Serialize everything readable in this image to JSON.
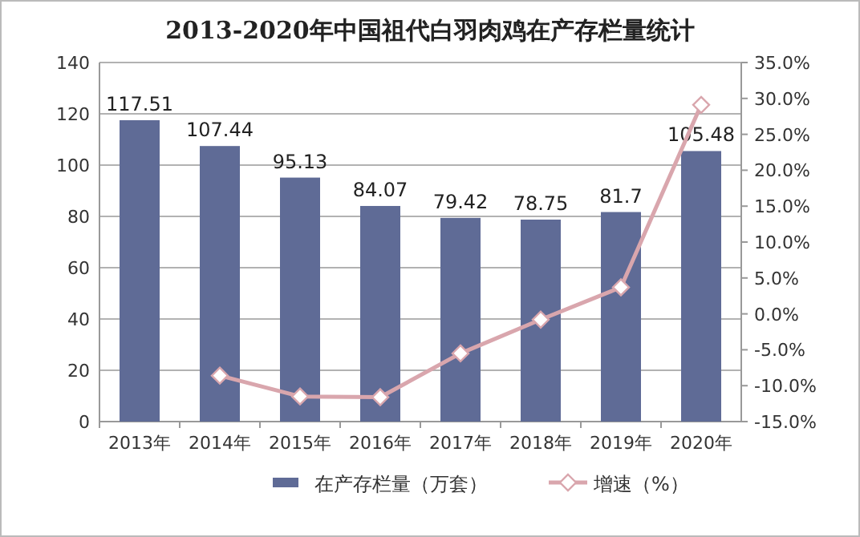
{
  "chart_data": {
    "type": "bar",
    "title": "2013-2020年中国祖代白羽肉鸡在产存栏量统计",
    "categories": [
      "2013年",
      "2014年",
      "2015年",
      "2016年",
      "2017年",
      "2018年",
      "2019年",
      "2020年"
    ],
    "series": [
      {
        "name": "在产存栏量（万套）",
        "color": "#5f6b96",
        "values": [
          117.51,
          107.44,
          95.13,
          84.07,
          79.42,
          78.75,
          81.7,
          105.48
        ],
        "value_labels": [
          "117.51",
          "107.44",
          "95.13",
          "84.07",
          "79.42",
          "78.75",
          "81.7",
          "105.48"
        ]
      },
      {
        "name": "增速（%）",
        "type": "line",
        "axis": "y2",
        "color": "#d9a6ad",
        "marker": "diamond",
        "values": [
          null,
          -8.6,
          -11.5,
          -11.6,
          -5.5,
          -0.8,
          3.7,
          29.1
        ]
      }
    ],
    "ylim": [
      0,
      140
    ],
    "yticks": [
      0,
      20,
      40,
      60,
      80,
      100,
      120,
      140
    ],
    "y2lim": [
      -15,
      35
    ],
    "y2ticks": [
      {
        "value": -15,
        "label": "-15.0%"
      },
      {
        "value": -10,
        "label": "-10.0%"
      },
      {
        "value": -5,
        "label": "-5.0%"
      },
      {
        "value": 0,
        "label": "0.0%"
      },
      {
        "value": 5,
        "label": "5.0%"
      },
      {
        "value": 10,
        "label": "10.0%"
      },
      {
        "value": 15,
        "label": "15.0%"
      },
      {
        "value": 20,
        "label": "20.0%"
      },
      {
        "value": 25,
        "label": "25.0%"
      },
      {
        "value": 30,
        "label": "30.0%"
      },
      {
        "value": 35,
        "label": "35.0%"
      }
    ],
    "grid": "y",
    "legend": "bottom"
  }
}
